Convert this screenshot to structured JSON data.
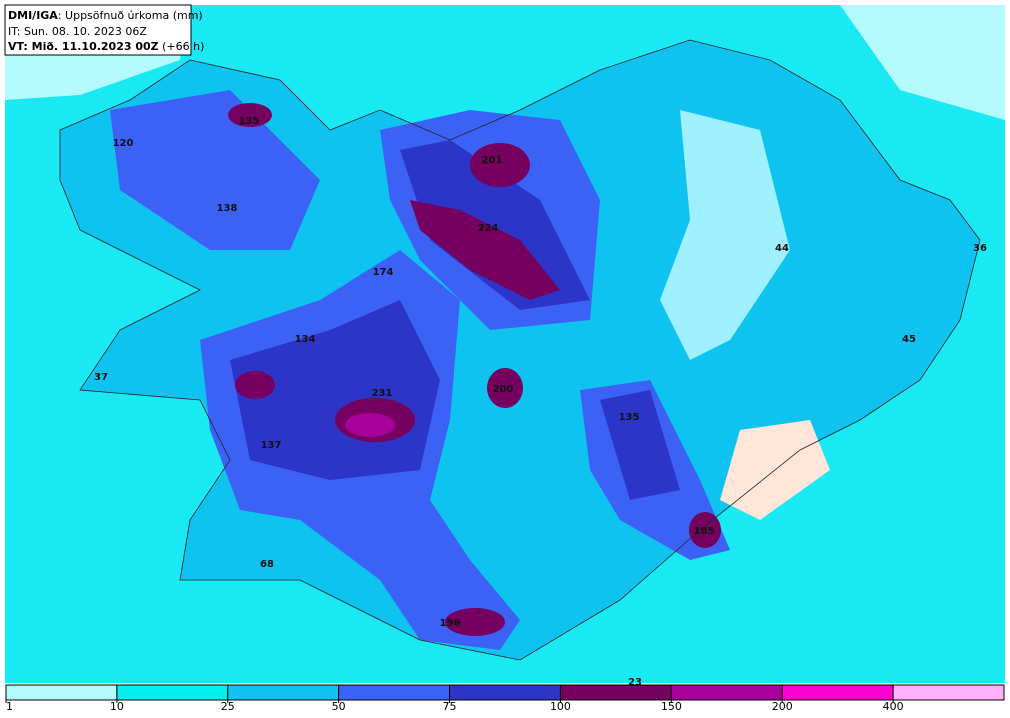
{
  "header": {
    "source": "DMI/IGA",
    "title": ": Uppsöfnuð úrkoma (mm)",
    "issued": "IT: Sun. 08. 10. 2023 06Z",
    "valid": "VT: Mið. 11.10.2023 00Z",
    "lead": " (+66 h)"
  },
  "peak_labels": [
    135,
    120,
    138,
    201,
    224,
    174,
    44,
    36,
    45,
    134,
    37,
    200,
    231,
    135,
    137,
    185,
    68,
    196,
    23
  ],
  "legend": {
    "ticks": [
      1,
      10,
      25,
      50,
      75,
      100,
      150,
      200,
      400
    ],
    "colors": [
      "#b3fbff",
      "#00f0f0",
      "#0fc3f0",
      "#3c62f5",
      "#2d35c8",
      "#750060",
      "#a8009a",
      "#ff00d0",
      "#ffb0ff"
    ]
  }
}
